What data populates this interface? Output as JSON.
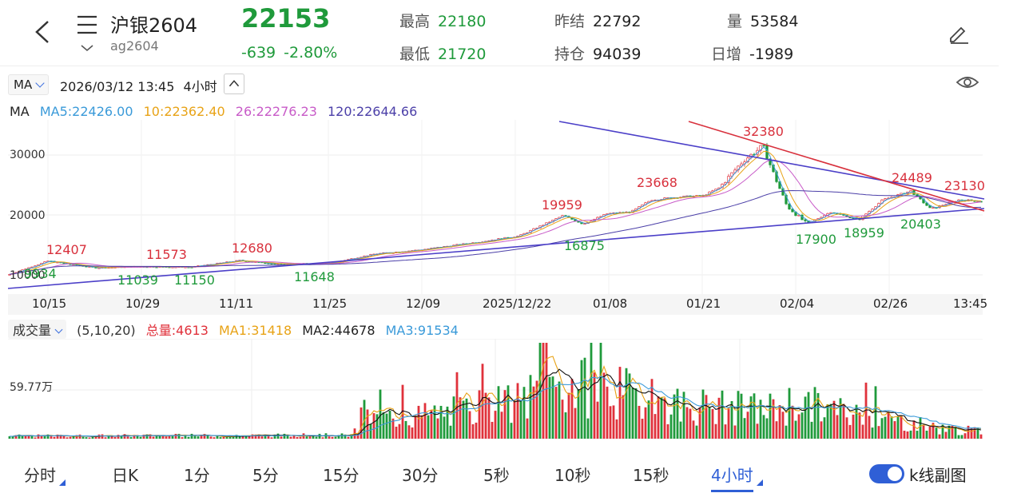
{
  "header": {
    "title": "沪银2604",
    "code": "ag2604",
    "last_price": "22153",
    "change": "-639",
    "change_pct": "-2.80%",
    "stats": [
      {
        "label": "最高",
        "value": "22180",
        "color": "green"
      },
      {
        "label": "昨结",
        "value": "22792",
        "color": "dark"
      },
      {
        "label": "量",
        "value": "53584",
        "color": "dark"
      },
      {
        "label": "最低",
        "value": "21720",
        "color": "green"
      },
      {
        "label": "持仓",
        "value": "94039",
        "color": "dark"
      },
      {
        "label": "日增",
        "value": "-1989",
        "color": "dark"
      }
    ]
  },
  "toolbar": {
    "indicator": "MA",
    "datetime": "2026/03/12 13:45",
    "period": "4小时"
  },
  "ma_legend": {
    "label": "MA",
    "items": [
      {
        "text": "MA5:22426.00",
        "color": "#3a9ad9"
      },
      {
        "text": "10:22362.40",
        "color": "#e8a317"
      },
      {
        "text": "26:22276.23",
        "color": "#c85bc8"
      },
      {
        "text": "120:22644.66",
        "color": "#4b3fa8"
      }
    ]
  },
  "price_chart": {
    "y_ticks": [
      "30000",
      "20000",
      "10000"
    ],
    "x_ticks": [
      "10/15",
      "10/29",
      "11/11",
      "11/25",
      "12/09",
      "2025/12/22",
      "01/08",
      "01/21",
      "02/04",
      "02/26",
      "13:45"
    ],
    "high_annotations": [
      "12407",
      "11573",
      "12680",
      "19959",
      "23668",
      "32380",
      "24489",
      "23130"
    ],
    "low_annotations": [
      "9934",
      "11039",
      "11150",
      "11648",
      "16875",
      "17900",
      "18959",
      "20403"
    ]
  },
  "volume": {
    "indicator": "成交量",
    "params": "(5,10,20)",
    "total": "总量:4613",
    "ma1": "MA1:31418",
    "ma2": "MA2:44678",
    "ma3": "MA3:91534",
    "y_tick": "59.77万",
    "colors": {
      "up": "#e0313b",
      "down": "#1f9a3b",
      "ma1": "#e8a317",
      "ma2": "#111111",
      "ma3": "#3a9ad9"
    }
  },
  "tabs": [
    "分时",
    "日K",
    "1分",
    "5分",
    "15分",
    "30分",
    "5秒",
    "10秒",
    "15秒",
    "4小时"
  ],
  "active_tab": "4小时",
  "sub_chart_toggle": "k线副图",
  "colors": {
    "up": "#e0313b",
    "down": "#1f9a3b",
    "accent": "#2f5fd6"
  }
}
